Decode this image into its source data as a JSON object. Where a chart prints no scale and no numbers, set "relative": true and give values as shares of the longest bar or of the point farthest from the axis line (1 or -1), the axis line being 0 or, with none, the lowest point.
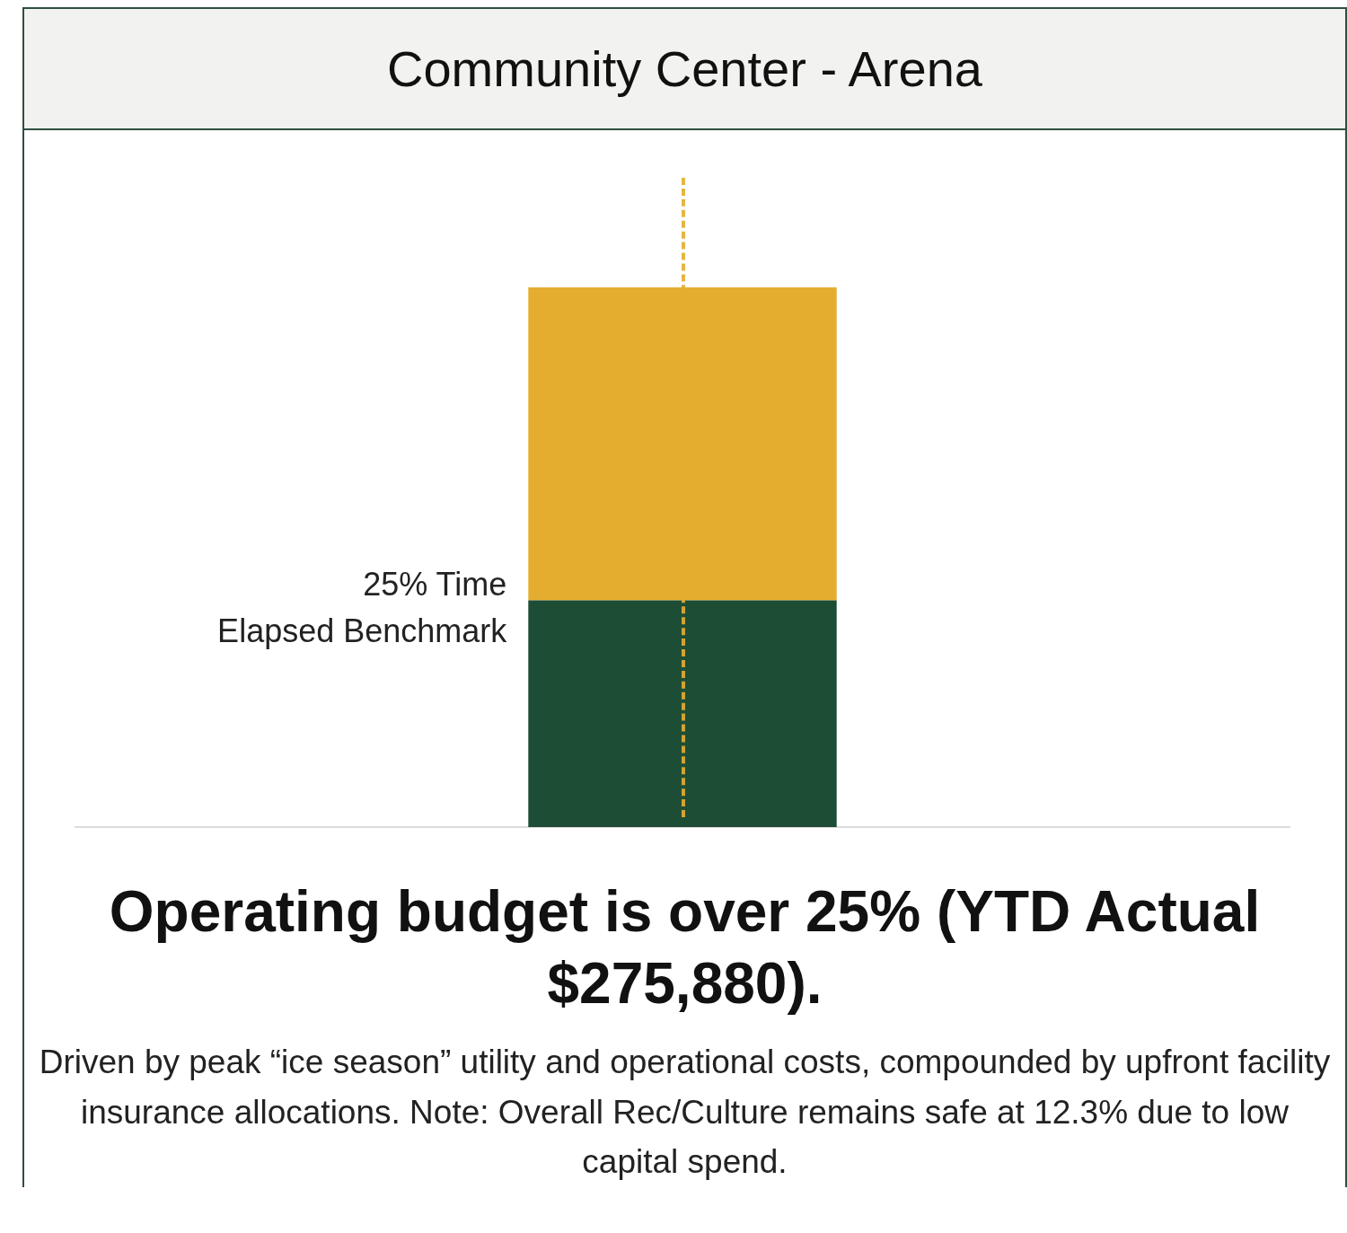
{
  "chart_data": {
    "type": "bar",
    "title": "Community Center - Arena",
    "categories": [
      null
    ],
    "stacked": true,
    "relative": true,
    "legend": false,
    "grid": false,
    "tick_labels": false,
    "series": [
      {
        "color": "#1e4d36",
        "values": [
          0.42
        ]
      },
      {
        "color": "#e5ad30",
        "values": [
          0.58
        ]
      }
    ],
    "annotations": [
      "25% Time Elapsed Benchmark",
      "Operating budget is over 25% (YTD Actual $275,880).",
      "Driven by peak “ice season” utility and operational costs, compounded by upfront facility insurance allocations. Note: Overall Rec/Culture remains safe at 12.3% due to low capital spend."
    ]
  }
}
